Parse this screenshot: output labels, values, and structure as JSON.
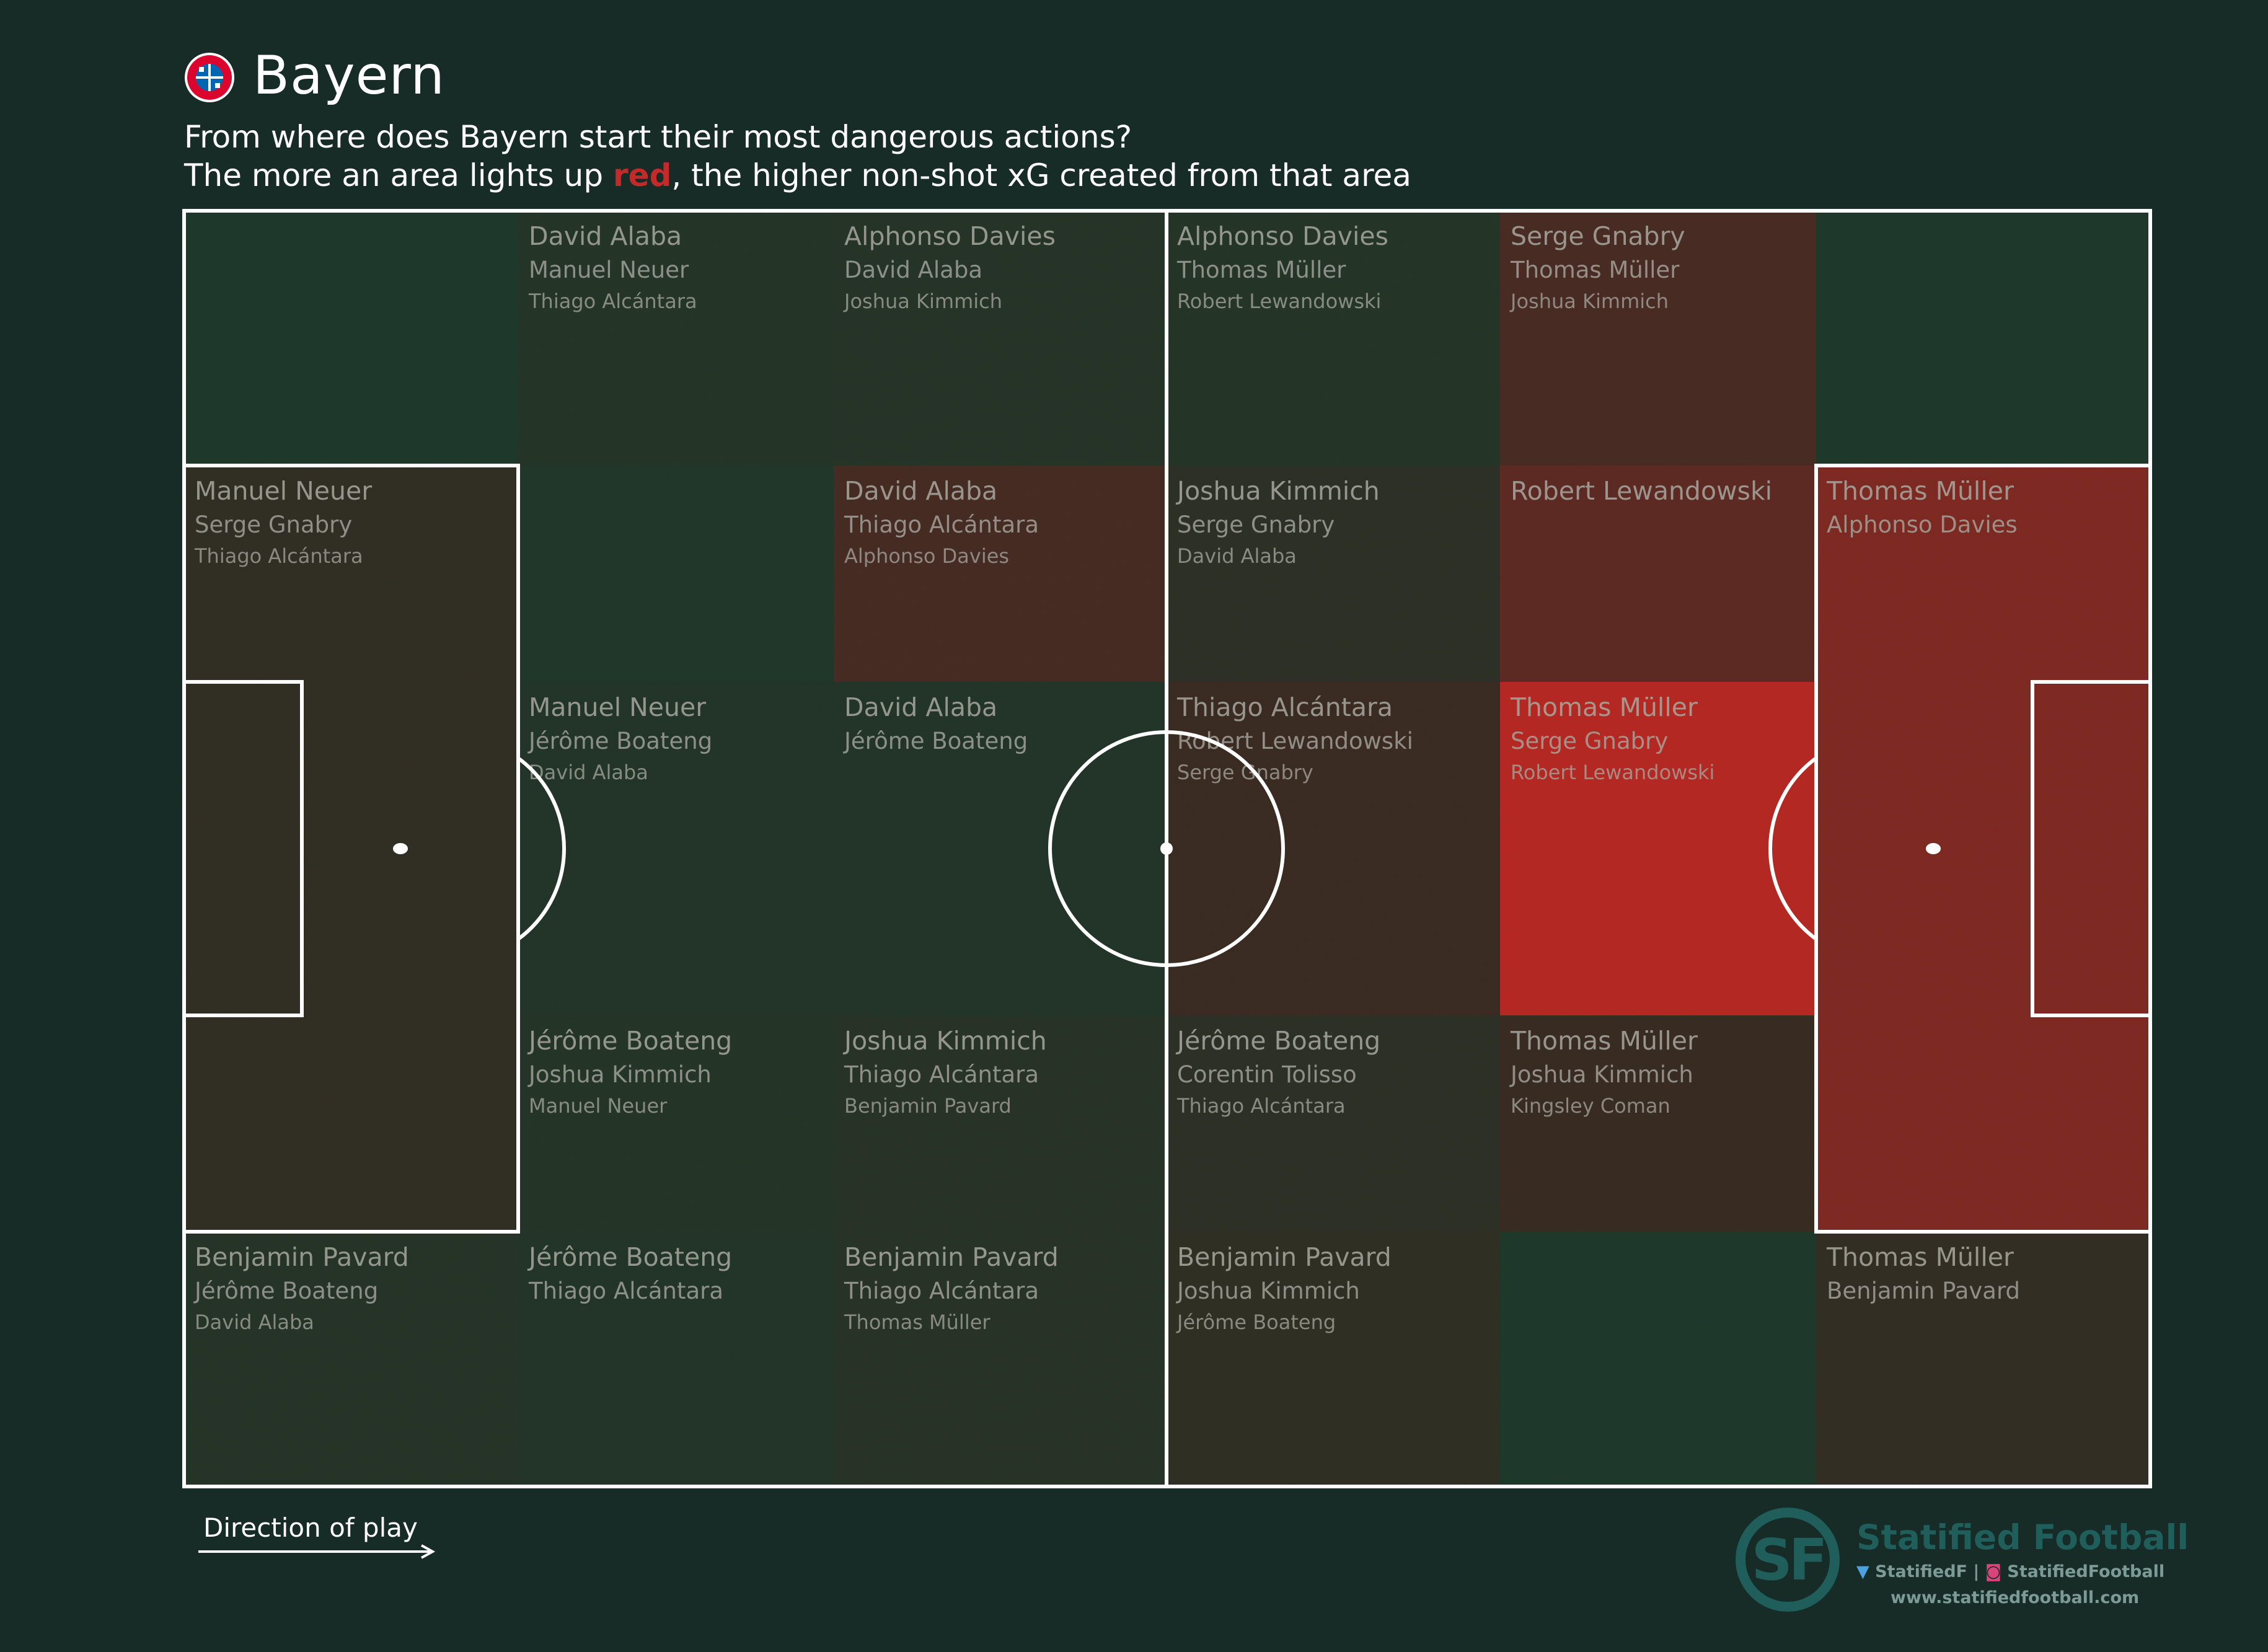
{
  "header": {
    "logo_icon": "fc-bayern-crest-icon",
    "title": "Bayern",
    "subtitle_line1": "From where does Bayern start their most dangerous actions?",
    "subtitle_line2_pre": "The more an area lights up ",
    "subtitle_line2_red": "red",
    "subtitle_line2_post": ", the higher non-shot xG created from that area"
  },
  "colors": {
    "background": "#172b27",
    "pitch_base": "#1f3a2c",
    "heat_max": "#c42a24",
    "lines": "#ffffff",
    "label_text": "#a8a8a0",
    "brand": "#1f5e5a"
  },
  "chart_data": {
    "type": "heatmap",
    "title": "Bayern",
    "columns": 6,
    "rows": 5,
    "grid": [
      {
        "col": 0,
        "row": 0,
        "intensity": 0.0,
        "players": []
      },
      {
        "col": 1,
        "row": 0,
        "intensity": 0.05,
        "players": [
          "David Alaba",
          "Manuel Neuer",
          "Thiago Alcántara"
        ]
      },
      {
        "col": 2,
        "row": 0,
        "intensity": 0.06,
        "players": [
          "Alphonso Davies",
          "David Alaba",
          "Joshua Kimmich"
        ]
      },
      {
        "col": 3,
        "row": 0,
        "intensity": 0.05,
        "players": [
          "Alphonso Davies",
          "Thomas Müller",
          "Robert Lewandowski"
        ]
      },
      {
        "col": 4,
        "row": 0,
        "intensity": 0.3,
        "players": [
          "Serge Gnabry",
          "Thomas Müller",
          "Joshua Kimmich"
        ]
      },
      {
        "col": 5,
        "row": 0,
        "intensity": 0.0,
        "players": []
      },
      {
        "col": 0,
        "row": 1,
        "intensity": 0.15,
        "players": [
          "Manuel Neuer",
          "Serge Gnabry",
          "Thiago Alcántara"
        ]
      },
      {
        "col": 1,
        "row": 1,
        "intensity": 0.02,
        "players": []
      },
      {
        "col": 2,
        "row": 1,
        "intensity": 0.28,
        "players": [
          "David Alaba",
          "Thiago Alcántara",
          "Alphonso Davies"
        ]
      },
      {
        "col": 3,
        "row": 1,
        "intensity": 0.12,
        "players": [
          "Joshua Kimmich",
          "Serge Gnabry",
          "David Alaba"
        ]
      },
      {
        "col": 4,
        "row": 1,
        "intensity": 0.42,
        "players": [
          "Robert Lewandowski"
        ]
      },
      {
        "col": 5,
        "row": 1,
        "intensity": 0.62,
        "players": [
          "Thomas Müller",
          "Alphonso Davies"
        ]
      },
      {
        "col": 0,
        "row": 2,
        "intensity": 0.15,
        "players": []
      },
      {
        "col": 1,
        "row": 2,
        "intensity": 0.04,
        "players": [
          "Manuel Neuer",
          "Jérôme Boateng",
          "David Alaba"
        ]
      },
      {
        "col": 2,
        "row": 2,
        "intensity": 0.04,
        "players": [
          "David Alaba",
          "Jérôme Boateng"
        ]
      },
      {
        "col": 3,
        "row": 2,
        "intensity": 0.22,
        "players": [
          "Thiago Alcántara",
          "Robert Lewandowski",
          "Serge Gnabry"
        ]
      },
      {
        "col": 4,
        "row": 2,
        "intensity": 0.95,
        "players": [
          "Thomas Müller",
          "Serge Gnabry",
          "Robert Lewandowski"
        ]
      },
      {
        "col": 5,
        "row": 2,
        "intensity": 0.62,
        "players": []
      },
      {
        "col": 0,
        "row": 3,
        "intensity": 0.15,
        "players": []
      },
      {
        "col": 1,
        "row": 3,
        "intensity": 0.05,
        "players": [
          "Jérôme Boateng",
          "Joshua Kimmich",
          "Manuel Neuer"
        ]
      },
      {
        "col": 2,
        "row": 3,
        "intensity": 0.08,
        "players": [
          "Joshua Kimmich",
          "Thiago Alcántara",
          "Benjamin Pavard"
        ]
      },
      {
        "col": 3,
        "row": 3,
        "intensity": 0.12,
        "players": [
          "Jérôme Boateng",
          "Corentin Tolisso",
          "Thiago Alcántara"
        ]
      },
      {
        "col": 4,
        "row": 3,
        "intensity": 0.2,
        "players": [
          "Thomas Müller",
          "Joshua Kimmich",
          "Kingsley Coman"
        ]
      },
      {
        "col": 5,
        "row": 3,
        "intensity": 0.62,
        "players": []
      },
      {
        "col": 0,
        "row": 4,
        "intensity": 0.06,
        "players": [
          "Benjamin Pavard",
          "Jérôme Boateng",
          "David Alaba"
        ]
      },
      {
        "col": 1,
        "row": 4,
        "intensity": 0.04,
        "players": [
          "Jérôme Boateng",
          "Thiago Alcántara"
        ]
      },
      {
        "col": 2,
        "row": 4,
        "intensity": 0.08,
        "players": [
          "Benjamin Pavard",
          "Thiago Alcántara",
          "Thomas Müller"
        ]
      },
      {
        "col": 3,
        "row": 4,
        "intensity": 0.14,
        "players": [
          "Benjamin Pavard",
          "Joshua Kimmich",
          "Jérôme Boateng"
        ]
      },
      {
        "col": 4,
        "row": 4,
        "intensity": 0.0,
        "players": []
      },
      {
        "col": 5,
        "row": 4,
        "intensity": 0.16,
        "players": [
          "Thomas Müller",
          "Benjamin Pavard"
        ]
      }
    ]
  },
  "footer": {
    "direction_label": "Direction of play",
    "arrow_icon": "arrow-right-icon",
    "brand_initials": "SF",
    "brand_name": "Statified Football",
    "twitter_icon": "twitter-bird-icon",
    "twitter_handle": "StatifiedF",
    "separator": " | ",
    "instagram_icon": "instagram-icon",
    "instagram_handle": "StatifiedFootball",
    "website": "www.statifiedfootball.com"
  }
}
